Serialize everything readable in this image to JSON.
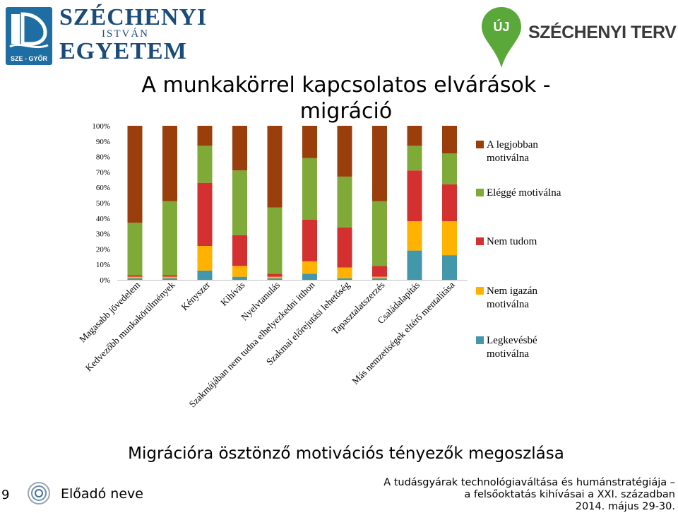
{
  "header": {
    "university_logo": {
      "line1": "SZÉCHENYI",
      "line2": "ISTVÁN",
      "line3": "EGYETEM",
      "emblem_text": "SZE - GYŐR"
    },
    "plan_logo": {
      "badge": "ÚJ",
      "text": "SZÉCHENYI TERV"
    }
  },
  "slide_title": "A munkakörrel kapcsolatos elvárások - migráció",
  "chart_data": {
    "type": "bar",
    "stacked": true,
    "percent": true,
    "categories": [
      "Magasabb jövedelem",
      "Kedvezőbb munkakörülmények",
      "Kényszer",
      "Kihívás",
      "Nyelvtanulás",
      "Szakmájában nem tudna elhelyezkedni itthon",
      "Szakmai előrejutási lehetőség",
      "Tapasztalatszerzés",
      "Családalapítás",
      "Más nemzetiségek eltérő mentalitása"
    ],
    "series": [
      {
        "name": "Legkevésbé motiválna",
        "color": "#4297AB",
        "values": [
          1,
          1,
          6,
          2,
          1,
          4,
          1,
          1,
          19,
          16
        ]
      },
      {
        "name": "Nem igazán motiválna",
        "color": "#FFB300",
        "values": [
          1,
          1,
          16,
          7,
          1,
          8,
          7,
          1,
          19,
          22
        ]
      },
      {
        "name": "Nem tudom",
        "color": "#D3302F",
        "values": [
          1,
          1,
          41,
          20,
          2,
          27,
          26,
          7,
          33,
          24
        ]
      },
      {
        "name": "Eléggé motiválna",
        "color": "#7FAA38",
        "values": [
          34,
          48,
          24,
          42,
          43,
          40,
          33,
          42,
          16,
          20
        ]
      },
      {
        "name": "A legjobban motiválna",
        "color": "#9A3F0B",
        "values": [
          63,
          49,
          13,
          29,
          53,
          21,
          33,
          49,
          13,
          18
        ]
      }
    ],
    "legend_order": [
      "A legjobban motiválna",
      "Eléggé motiválna",
      "Nem tudom",
      "Nem igazán motiválna",
      "Legkevésbé motiválna"
    ],
    "y_ticks": [
      "0%",
      "10%",
      "20%",
      "30%",
      "40%",
      "50%",
      "60%",
      "70%",
      "80%",
      "90%",
      "100%"
    ],
    "ylim": [
      0,
      100
    ],
    "grid": false,
    "legend_position": "right"
  },
  "caption": "Migrációra ösztönző motivációs tényezők megoszlása",
  "footer": {
    "slide_number": "9",
    "presenter": "Előadó neve",
    "conference_line1": "A tudásgyárak technológiaváltása és humánstratégiája –",
    "conference_line2": "a felsőoktatás kihívásai a XXI. században",
    "conference_line3": "2014. május 29-30."
  }
}
